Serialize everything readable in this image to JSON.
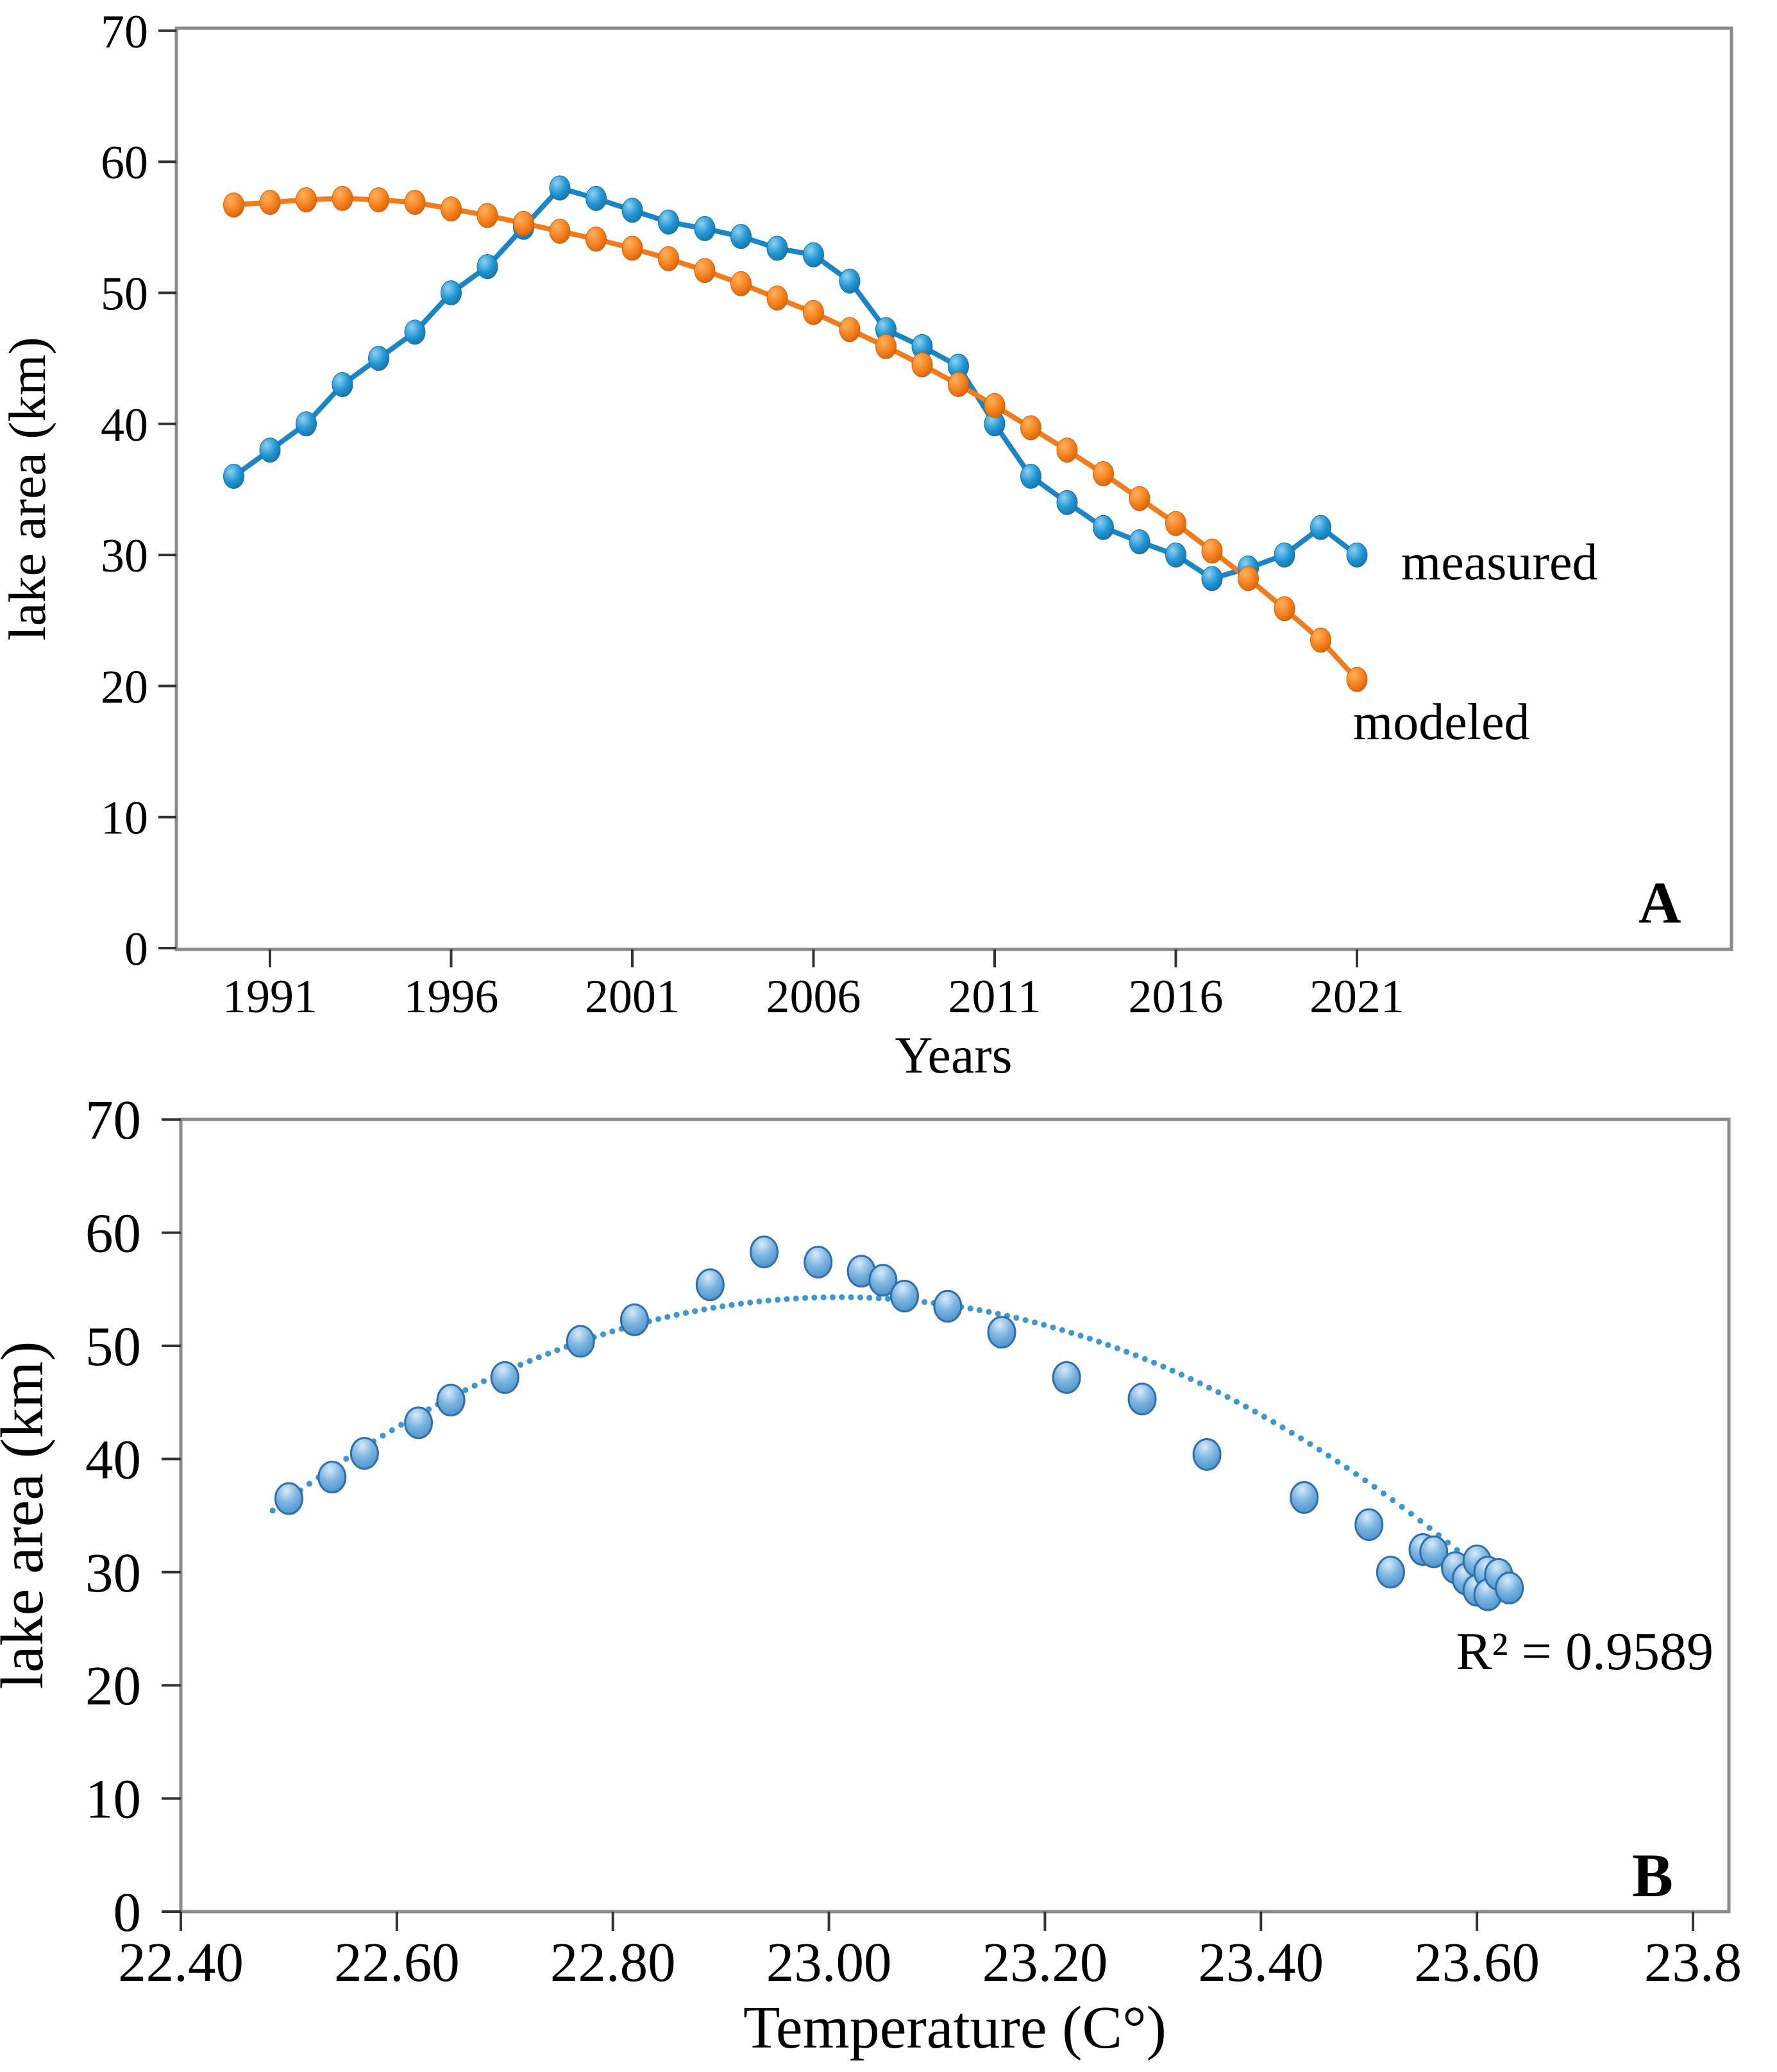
{
  "figure": {
    "panel_a_label": "A",
    "panel_b_label": "B",
    "series_labels": {
      "measured": "measured",
      "modeled": "modeled"
    },
    "r_squared_label": "R² = 0.9589"
  },
  "chart_data": [
    {
      "type": "line",
      "panel": "A",
      "xlabel": "Years",
      "ylabel": "lake area (km)",
      "x_ticks": [
        1991,
        1996,
        2001,
        2006,
        2011,
        2016,
        2021
      ],
      "y_ticks": [
        0,
        10,
        20,
        30,
        40,
        50,
        60,
        70
      ],
      "ylim": [
        0,
        70
      ],
      "xlim": [
        1989.5,
        2024
      ],
      "legend_position": "right-of-last-points",
      "grid": false,
      "x": [
        1990,
        1991,
        1992,
        1993,
        1994,
        1995,
        1996,
        1997,
        1998,
        1999,
        2000,
        2001,
        2002,
        2003,
        2004,
        2005,
        2006,
        2007,
        2008,
        2009,
        2010,
        2011,
        2012,
        2013,
        2014,
        2015,
        2016,
        2017,
        2018,
        2019,
        2020,
        2021
      ],
      "series": [
        {
          "name": "measured",
          "label": "measured",
          "line_color": "#1c85c5",
          "marker_colors": {
            "highlight": "#8fd0f0",
            "mid": "#2196d3",
            "dark": "#156fa3"
          },
          "values": [
            36,
            38,
            40,
            43,
            45,
            47,
            50,
            52,
            55,
            58,
            57.2,
            56.3,
            55.4,
            54.9,
            54.3,
            53.4,
            52.9,
            50.9,
            47.2,
            45.9,
            44.4,
            40,
            36,
            34,
            32.1,
            31,
            30,
            28.2,
            29,
            30,
            32.1,
            30
          ]
        },
        {
          "name": "modeled",
          "label": "modeled",
          "line_color": "#ef7d1e",
          "marker_colors": {
            "highlight": "#ffb25e",
            "mid": "#f58220",
            "dark": "#d35f05"
          },
          "values": [
            56.7,
            56.9,
            57.1,
            57.2,
            57.1,
            56.9,
            56.4,
            55.9,
            55.3,
            54.7,
            54.1,
            53.4,
            52.6,
            51.7,
            50.7,
            49.6,
            48.5,
            47.2,
            45.9,
            44.5,
            43,
            41.4,
            39.7,
            38,
            36.2,
            34.3,
            32.4,
            30.3,
            28.2,
            25.9,
            23.5,
            20.5
          ]
        }
      ]
    },
    {
      "type": "scatter",
      "panel": "B",
      "xlabel": "Temperature (C°)",
      "ylabel": "lake area (km)",
      "x_ticks": [
        "22.40",
        "22.60",
        "22.80",
        "23.00",
        "23.20",
        "23.40",
        "23.60",
        "23.8"
      ],
      "x_tick_values": [
        22.4,
        22.6,
        22.8,
        23.0,
        23.2,
        23.4,
        23.6,
        23.8
      ],
      "y_ticks": [
        0,
        10,
        20,
        30,
        40,
        50,
        60,
        70
      ],
      "ylim": [
        0,
        70
      ],
      "xlim": [
        22.4,
        23.85
      ],
      "grid": false,
      "marker_colors": {
        "highlight": "#d8eaf8",
        "mid": "#7ab4e0",
        "dark": "#3e86c4",
        "stroke": "#2f6fad"
      },
      "points": [
        [
          22.5,
          36.5
        ],
        [
          22.54,
          38.4
        ],
        [
          22.57,
          40.5
        ],
        [
          22.62,
          43.2
        ],
        [
          22.65,
          45.2
        ],
        [
          22.7,
          47.2
        ],
        [
          22.77,
          50.4
        ],
        [
          22.82,
          52.3
        ],
        [
          22.89,
          55.4
        ],
        [
          22.94,
          58.3
        ],
        [
          22.99,
          57.4
        ],
        [
          23.03,
          56.6
        ],
        [
          23.05,
          55.8
        ],
        [
          23.07,
          54.4
        ],
        [
          23.11,
          53.5
        ],
        [
          23.16,
          51.2
        ],
        [
          23.22,
          47.2
        ],
        [
          23.29,
          45.3
        ],
        [
          23.35,
          40.4
        ],
        [
          23.44,
          36.6
        ],
        [
          23.5,
          34.2
        ],
        [
          23.52,
          30.0
        ],
        [
          23.55,
          32.0
        ],
        [
          23.56,
          31.8
        ],
        [
          23.58,
          30.4
        ],
        [
          23.59,
          29.4
        ],
        [
          23.6,
          31.0
        ],
        [
          23.6,
          28.4
        ],
        [
          23.61,
          30.0
        ],
        [
          23.61,
          28.0
        ],
        [
          23.62,
          29.8
        ],
        [
          23.63,
          28.6
        ]
      ],
      "trendline": {
        "style": "dotted",
        "color": "#3f97d2",
        "shape": "quadratic",
        "peak_x": 23.01,
        "peak_y": 54.3,
        "a": 68.4,
        "x_start": 22.485,
        "x_end": 23.625
      },
      "r_squared": 0.9589,
      "r_squared_label": "R² = 0.9589"
    }
  ]
}
